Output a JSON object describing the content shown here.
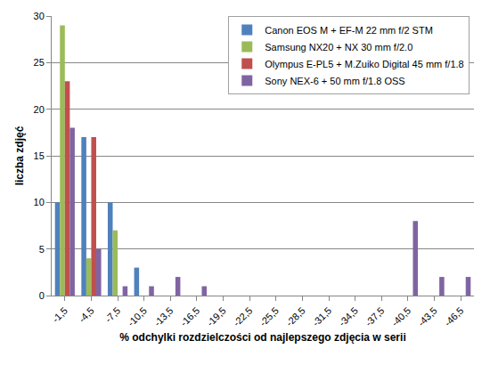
{
  "chart_data": {
    "type": "bar",
    "xlabel": "% odchylki rozdzielczości od najlepszego zdjęcia w serii",
    "ylabel": "liczba zdjęć",
    "categories": [
      "-1,5",
      "-4,5",
      "-7,5",
      "-10,5",
      "-13,5",
      "-16,5",
      "-19,5",
      "-22,5",
      "-25,5",
      "-28,5",
      "-31,5",
      "-34,5",
      "-37,5",
      "-40,5",
      "-43,5",
      "-46,5"
    ],
    "series": [
      {
        "name": "Canon EOS M + EF-M 22 mm f/2 STM",
        "color": "#4f81bd",
        "values": [
          10,
          17,
          10,
          3,
          0,
          0,
          0,
          0,
          0,
          0,
          0,
          0,
          0,
          0,
          0,
          0
        ]
      },
      {
        "name": "Samsung NX20 + NX 30 mm f/2.0",
        "color": "#9bbb59",
        "values": [
          29,
          4,
          7,
          0,
          0,
          0,
          0,
          0,
          0,
          0,
          0,
          0,
          0,
          0,
          0,
          0
        ]
      },
      {
        "name": "Olympus E-PL5 + M.Zuiko Digital 45 mm f/1.8",
        "color": "#c0504d",
        "values": [
          23,
          17,
          0,
          0,
          0,
          0,
          0,
          0,
          0,
          0,
          0,
          0,
          0,
          0,
          0,
          0
        ]
      },
      {
        "name": "Sony NEX-6 + 50 mm f/1.8 OSS",
        "color": "#8064a2",
        "values": [
          18,
          5,
          1,
          1,
          2,
          1,
          0,
          0,
          0,
          0,
          0,
          0,
          0,
          8,
          2,
          2
        ]
      }
    ],
    "ylim": [
      0,
      30
    ],
    "yticks": [
      0,
      5,
      10,
      15,
      20,
      25,
      30
    ],
    "grid": true,
    "legend": "top-right"
  }
}
